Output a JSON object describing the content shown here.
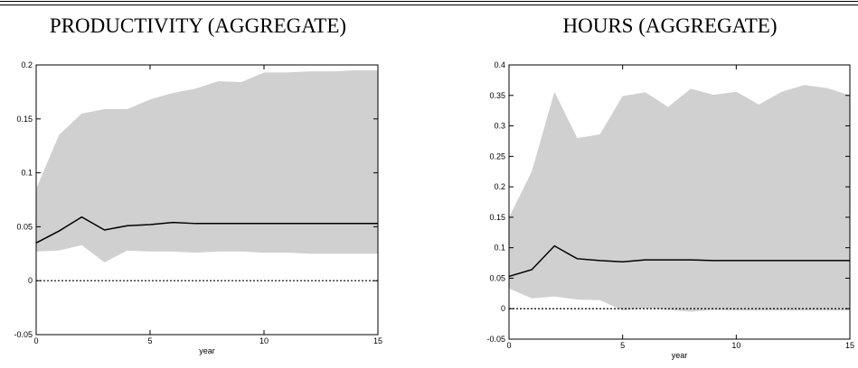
{
  "chart_data": [
    {
      "type": "line",
      "title": "PRODUCTIVITY (AGGREGATE)",
      "xlabel": "year",
      "x": [
        0,
        1,
        2,
        3,
        4,
        5,
        6,
        7,
        8,
        9,
        10,
        11,
        12,
        13,
        14,
        15
      ],
      "series": [
        {
          "color": "#000000",
          "values": [
            0.035,
            0.046,
            0.059,
            0.047,
            0.051,
            0.052,
            0.054,
            0.053,
            0.053,
            0.053,
            0.053,
            0.053,
            0.053,
            0.053,
            0.053,
            0.053
          ]
        }
      ],
      "band": {
        "color": "#d0d0d0",
        "upper": [
          0.085,
          0.135,
          0.155,
          0.159,
          0.159,
          0.168,
          0.174,
          0.178,
          0.185,
          0.184,
          0.193,
          0.193,
          0.194,
          0.194,
          0.195,
          0.195
        ],
        "lower": [
          0.027,
          0.028,
          0.033,
          0.017,
          0.028,
          0.027,
          0.027,
          0.026,
          0.027,
          0.027,
          0.026,
          0.026,
          0.025,
          0.025,
          0.025,
          0.025
        ]
      },
      "reference_line": 0,
      "xlim": [
        0,
        15
      ],
      "xticks": [
        0,
        5,
        10,
        15
      ],
      "ylim": [
        -0.05,
        0.2
      ],
      "yticks": [
        -0.05,
        0,
        0.05,
        0.1,
        0.15,
        0.2
      ]
    },
    {
      "type": "line",
      "title": "HOURS (AGGREGATE)",
      "xlabel": "year",
      "x": [
        0,
        1,
        2,
        3,
        4,
        5,
        6,
        7,
        8,
        9,
        10,
        11,
        12,
        13,
        14,
        15
      ],
      "series": [
        {
          "color": "#000000",
          "values": [
            0.053,
            0.064,
            0.103,
            0.082,
            0.079,
            0.077,
            0.08,
            0.08,
            0.08,
            0.079,
            0.079,
            0.079,
            0.079,
            0.079,
            0.079,
            0.079
          ]
        }
      ],
      "band": {
        "color": "#d0d0d0",
        "upper": [
          0.15,
          0.225,
          0.356,
          0.28,
          0.286,
          0.349,
          0.355,
          0.331,
          0.361,
          0.351,
          0.356,
          0.335,
          0.356,
          0.367,
          0.362,
          0.35
        ],
        "lower": [
          0.033,
          0.017,
          0.02,
          0.015,
          0.014,
          -0.003,
          0.001,
          -0.002,
          -0.005,
          -0.002,
          -0.003,
          -0.003,
          -0.003,
          -0.003,
          -0.003,
          -0.003
        ]
      },
      "reference_line": 0,
      "xlim": [
        0,
        15
      ],
      "xticks": [
        0,
        5,
        10,
        15
      ],
      "ylim": [
        -0.05,
        0.4
      ],
      "yticks": [
        -0.05,
        0,
        0.05,
        0.1,
        0.15,
        0.2,
        0.25,
        0.3,
        0.35,
        0.4
      ]
    }
  ]
}
